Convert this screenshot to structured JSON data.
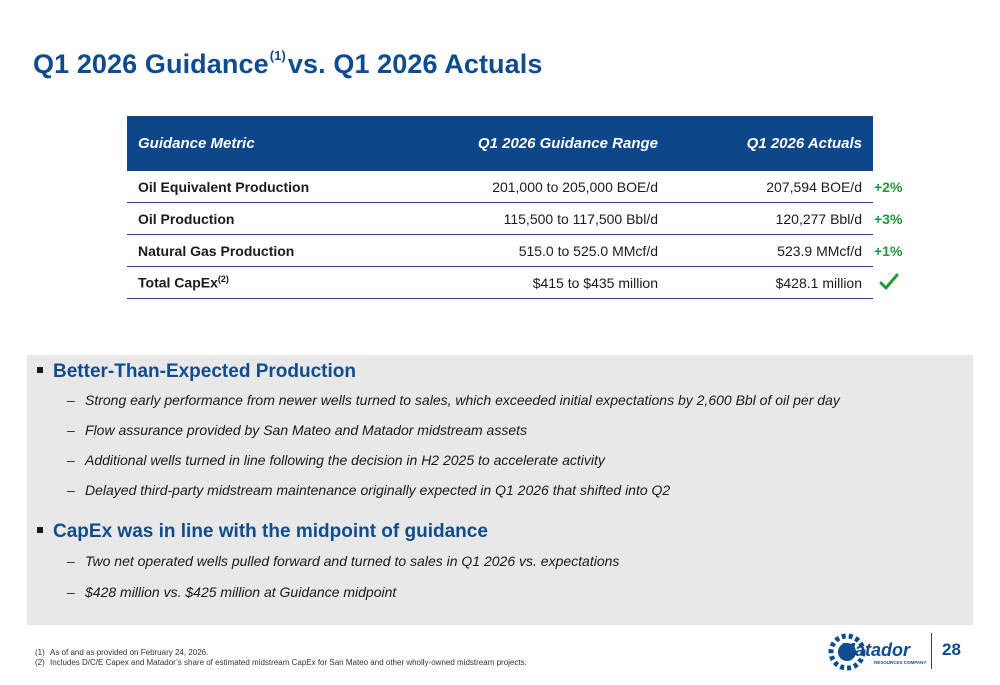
{
  "header": {
    "title_part1": "Q1 2026 Guidance",
    "title_sup": "(1)",
    "title_part2": "vs. Q1 2026 Actuals"
  },
  "table": {
    "columns": [
      "Guidance Metric",
      "Q1 2026 Guidance Range",
      "Q1 2026 Actuals"
    ],
    "rows": [
      {
        "metric": "Oil Equivalent Production",
        "metric_sup": "",
        "range": "201,000 to 205,000 BOE/d",
        "actual": "207,594 BOE/d",
        "delta": "+2%"
      },
      {
        "metric": "Oil Production",
        "metric_sup": "",
        "range": "115,500 to 117,500 Bbl/d",
        "actual": "120,277 Bbl/d",
        "delta": "+3%"
      },
      {
        "metric": "Natural Gas Production",
        "metric_sup": "",
        "range": "515.0 to 525.0 MMcf/d",
        "actual": "523.9 MMcf/d",
        "delta": "+1%"
      },
      {
        "metric": "Total CapEx",
        "metric_sup": "(2)",
        "range": "$415 to $435 million",
        "actual": "$428.1 million",
        "delta": ""
      }
    ],
    "check_color": "#1f9a3b"
  },
  "highlights": [
    {
      "heading": "Better-Than-Expected Production",
      "points": [
        "Strong early performance from newer wells turned to sales, which exceeded initial expectations by 2,600 Bbl of oil per day",
        "Flow assurance provided by San Mateo and Matador midstream assets",
        "Additional wells turned in line following the decision in H2 2025 to accelerate activity",
        "Delayed third-party midstream maintenance originally expected in Q1 2026 that shifted into Q2"
      ]
    },
    {
      "heading": "CapEx was in line with the midpoint of guidance",
      "points": [
        "Two net operated wells pulled forward and turned to sales in Q1 2026 vs. expectations",
        "$428 million vs. $425 million at Guidance midpoint"
      ]
    }
  ],
  "footnotes": [
    {
      "num": "(1)",
      "text": "As of and as provided on February 24, 2026."
    },
    {
      "num": "(2)",
      "text": "Includes D/C/E Capex and Matador’s share of estimated midstream CapEx for San Mateo and other wholly-owned midstream projects."
    }
  ],
  "logo": {
    "name": "Matador",
    "tagline": "RESOURCES COMPANY"
  },
  "page_number": "28",
  "colors": {
    "brand_blue": "#0f4c8f",
    "header_blue": "#0e4789",
    "positive_green": "#1f9a3b",
    "panel_gray": "#e8e8e8"
  }
}
